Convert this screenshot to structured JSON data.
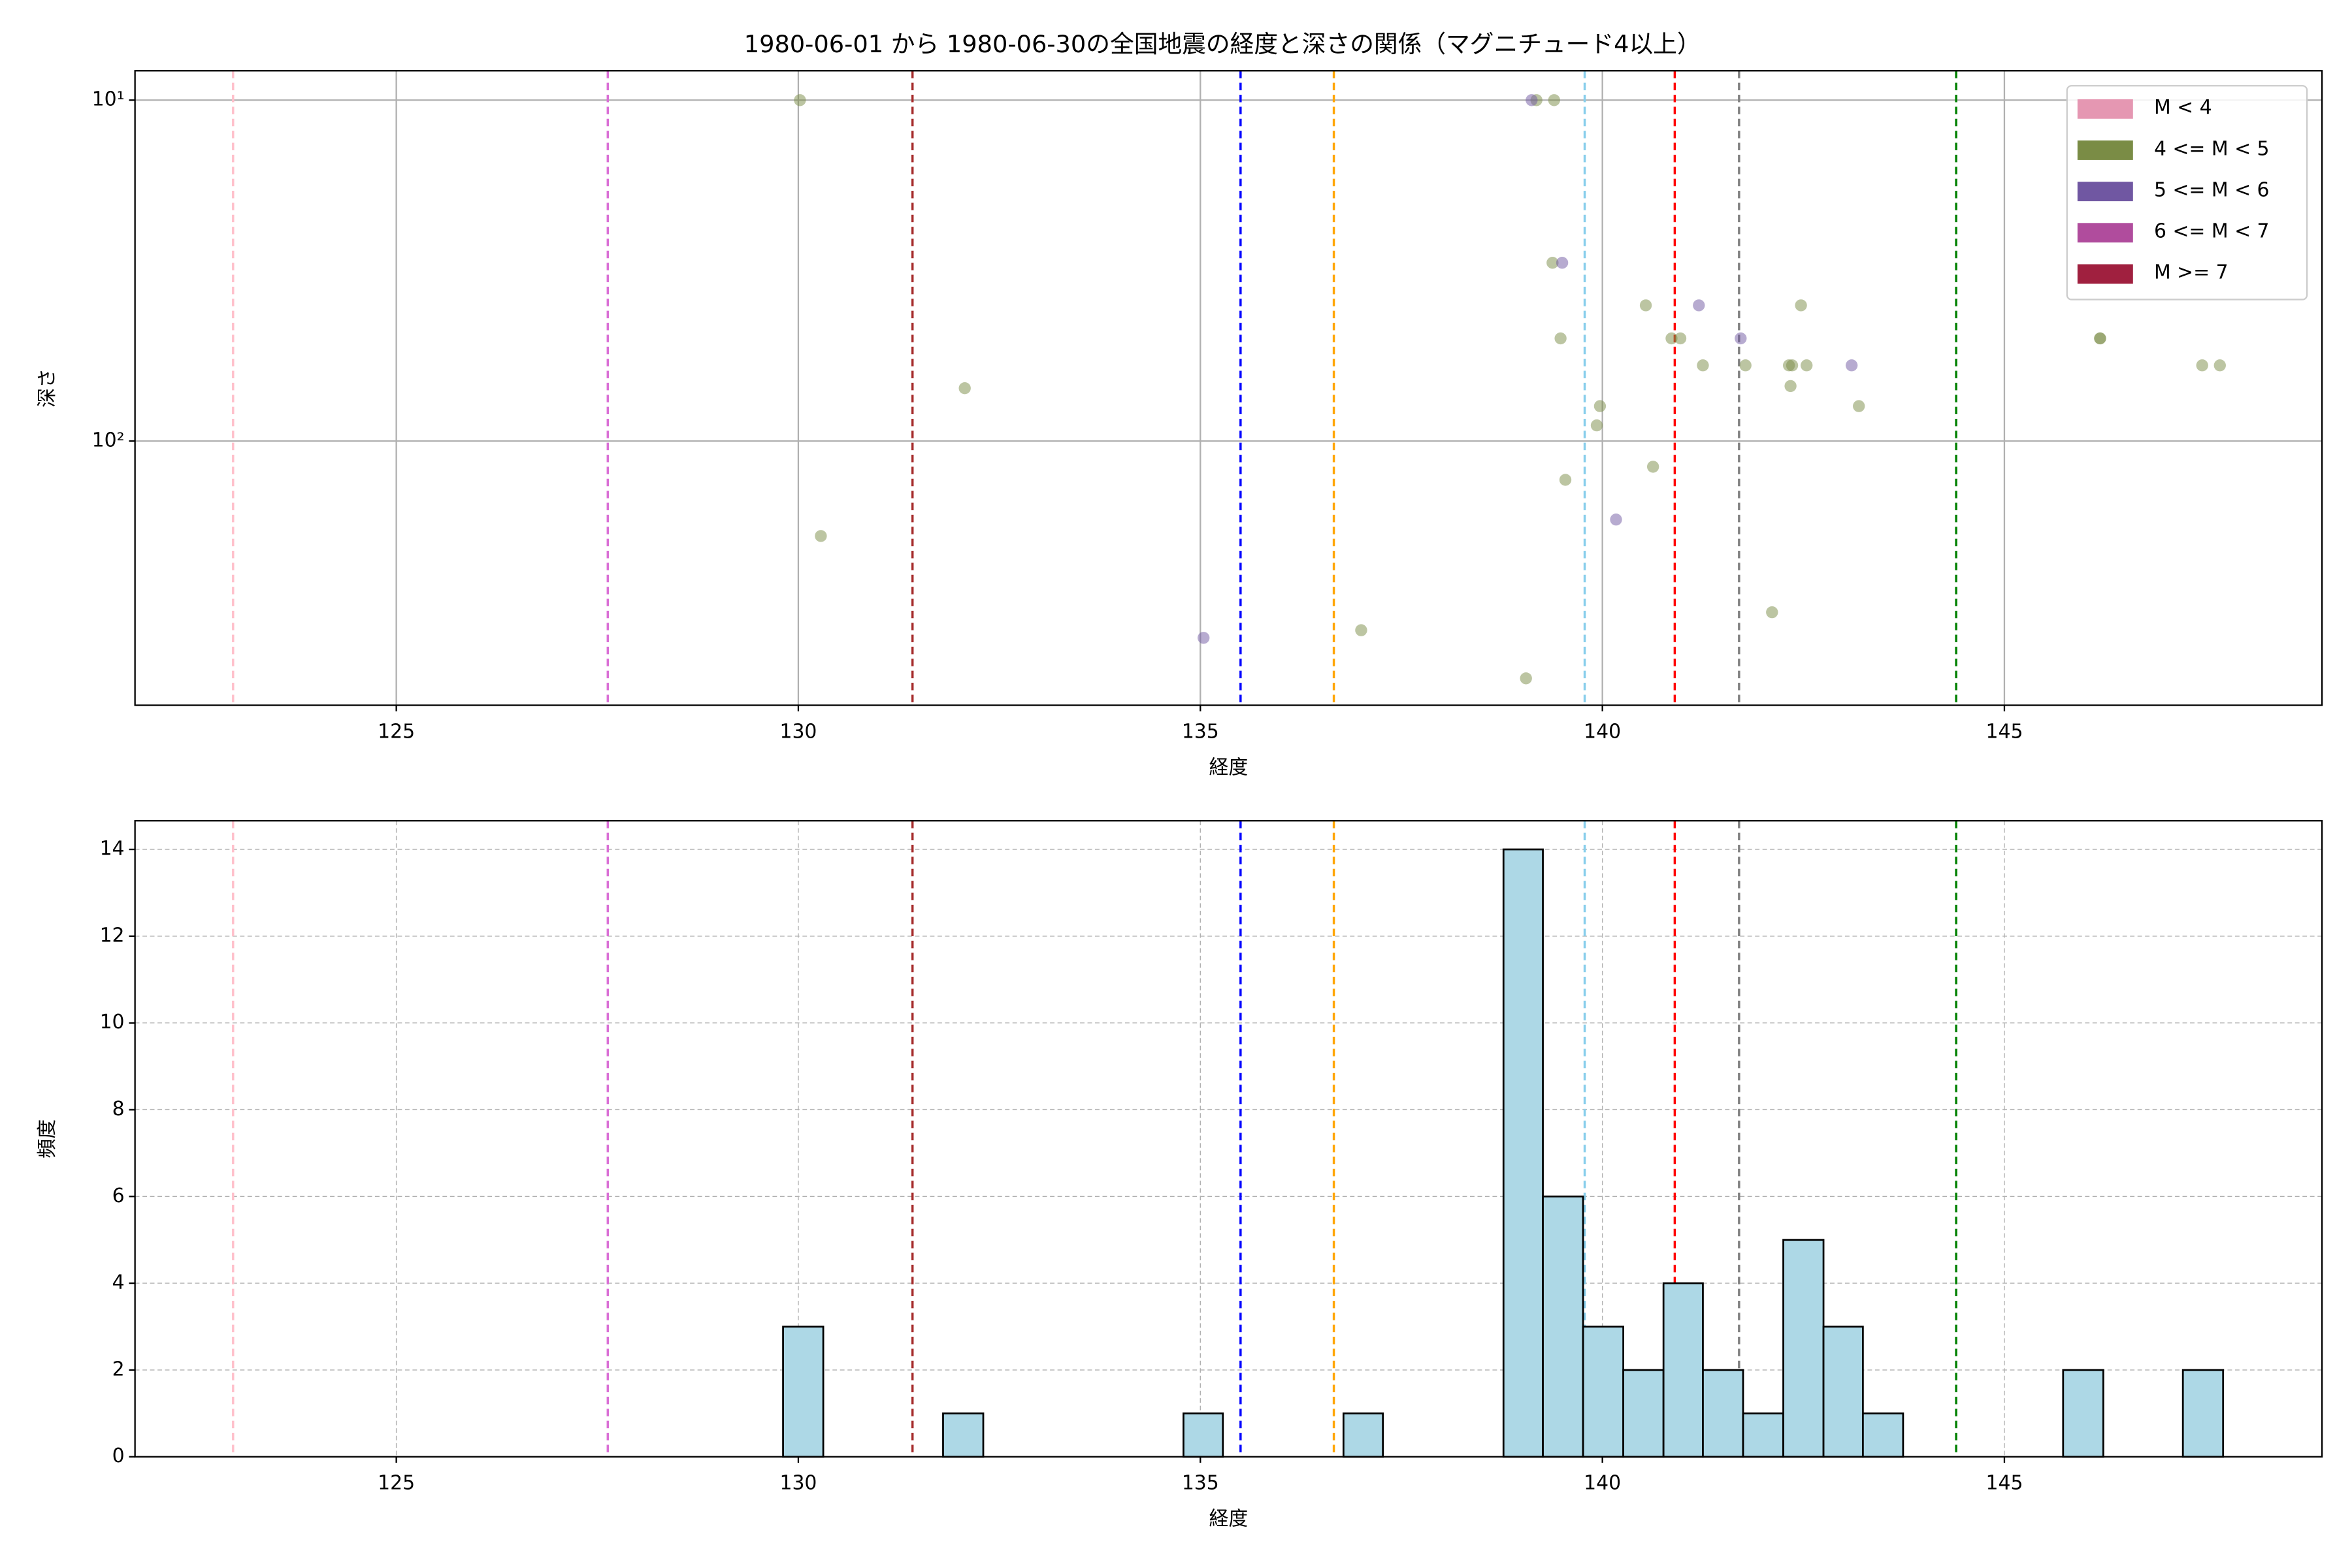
{
  "chart_data": [
    {
      "type": "scatter",
      "title": "1980-06-01 から 1980-06-30の全国地震の経度と深さの関係（マグニチュード4以上）",
      "xlabel": "経度",
      "ylabel": "深さ",
      "xlim": [
        121.75,
        148.95
      ],
      "xticks": [
        125,
        130,
        135,
        140,
        145
      ],
      "ylim": [
        596,
        8.2
      ],
      "log_y": true,
      "yticks": [
        {
          "value": 10,
          "label": "10¹"
        },
        {
          "value": 100,
          "label": "10²"
        }
      ],
      "grid": true,
      "legend": "upper right",
      "alpha": 0.5,
      "series": [
        {
          "name": "M < 4",
          "color": "#e597b2",
          "x": [],
          "values": []
        },
        {
          "name": "4 <= M < 5",
          "color": "#7a8c45",
          "x": [
            130.02,
            139.18,
            139.4,
            132.07,
            130.28,
            137.0,
            139.05,
            139.38,
            139.48,
            139.97,
            139.93,
            139.54,
            140.54,
            140.86,
            140.97,
            140.63,
            141.25,
            141.78,
            142.32,
            142.36,
            142.34,
            142.47,
            142.54,
            142.11,
            143.19,
            146.19,
            146.19,
            147.46,
            147.68
          ],
          "values": [
            10,
            10,
            10,
            70,
            190,
            359,
            497,
            30,
            50,
            79,
            90,
            130,
            40,
            50,
            50,
            119,
            60,
            60,
            60,
            60,
            69,
            40,
            60,
            318,
            79,
            50,
            50,
            60,
            60
          ]
        },
        {
          "name": "5 <= M < 6",
          "color": "#7057a2",
          "x": [
            139.12,
            135.04,
            139.5,
            140.17,
            141.2,
            141.72,
            143.1
          ],
          "values": [
            10,
            378,
            30,
            170,
            40,
            50,
            60
          ]
        },
        {
          "name": "6 <= M < 7",
          "color": "#b04c9d",
          "x": [],
          "values": []
        },
        {
          "name": "M >= 7",
          "color": "#a0203f",
          "x": [],
          "values": []
        }
      ],
      "vlines": [
        {
          "x": 122.97,
          "color": "pink"
        },
        {
          "x": 127.63,
          "color": "orchid"
        },
        {
          "x": 131.42,
          "color": "brown"
        },
        {
          "x": 135.5,
          "color": "blue"
        },
        {
          "x": 136.66,
          "color": "orange"
        },
        {
          "x": 139.78,
          "color": "skyblue"
        },
        {
          "x": 140.9,
          "color": "red"
        },
        {
          "x": 141.7,
          "color": "gray"
        },
        {
          "x": 144.4,
          "color": "green"
        }
      ]
    },
    {
      "type": "histogram",
      "xlabel": "経度",
      "ylabel": "頻度",
      "xlim": [
        121.75,
        148.95
      ],
      "xticks": [
        125,
        130,
        135,
        140,
        145
      ],
      "ylim": [
        0,
        14.66
      ],
      "yticks": [
        0,
        2,
        4,
        6,
        8,
        10,
        12,
        14
      ],
      "grid": true,
      "color": "#add8e6",
      "edgecolor": "#000000",
      "bins": [
        129.81,
        130.31,
        130.8,
        131.3,
        131.8,
        132.3,
        132.8,
        133.29,
        133.79,
        134.29,
        134.79,
        135.28,
        135.78,
        136.28,
        136.78,
        137.27,
        137.77,
        138.27,
        138.77,
        139.26,
        139.76,
        140.26,
        140.76,
        141.25,
        141.75,
        142.25,
        142.75,
        143.24,
        143.74,
        144.24,
        144.74,
        145.23,
        145.73,
        146.23,
        146.73,
        147.22,
        147.72
      ],
      "values": [
        3,
        0,
        0,
        0,
        1,
        0,
        0,
        0,
        0,
        0,
        1,
        0,
        0,
        0,
        1,
        0,
        0,
        0,
        14,
        6,
        3,
        2,
        4,
        2,
        1,
        5,
        3,
        1,
        0,
        0,
        0,
        0,
        2,
        0,
        0,
        2
      ],
      "vlines": [
        {
          "x": 122.97,
          "color": "pink"
        },
        {
          "x": 127.63,
          "color": "orchid"
        },
        {
          "x": 131.42,
          "color": "brown"
        },
        {
          "x": 135.5,
          "color": "blue"
        },
        {
          "x": 136.66,
          "color": "orange"
        },
        {
          "x": 139.78,
          "color": "skyblue"
        },
        {
          "x": 140.9,
          "color": "red"
        },
        {
          "x": 141.7,
          "color": "gray"
        },
        {
          "x": 144.4,
          "color": "green"
        }
      ]
    }
  ]
}
